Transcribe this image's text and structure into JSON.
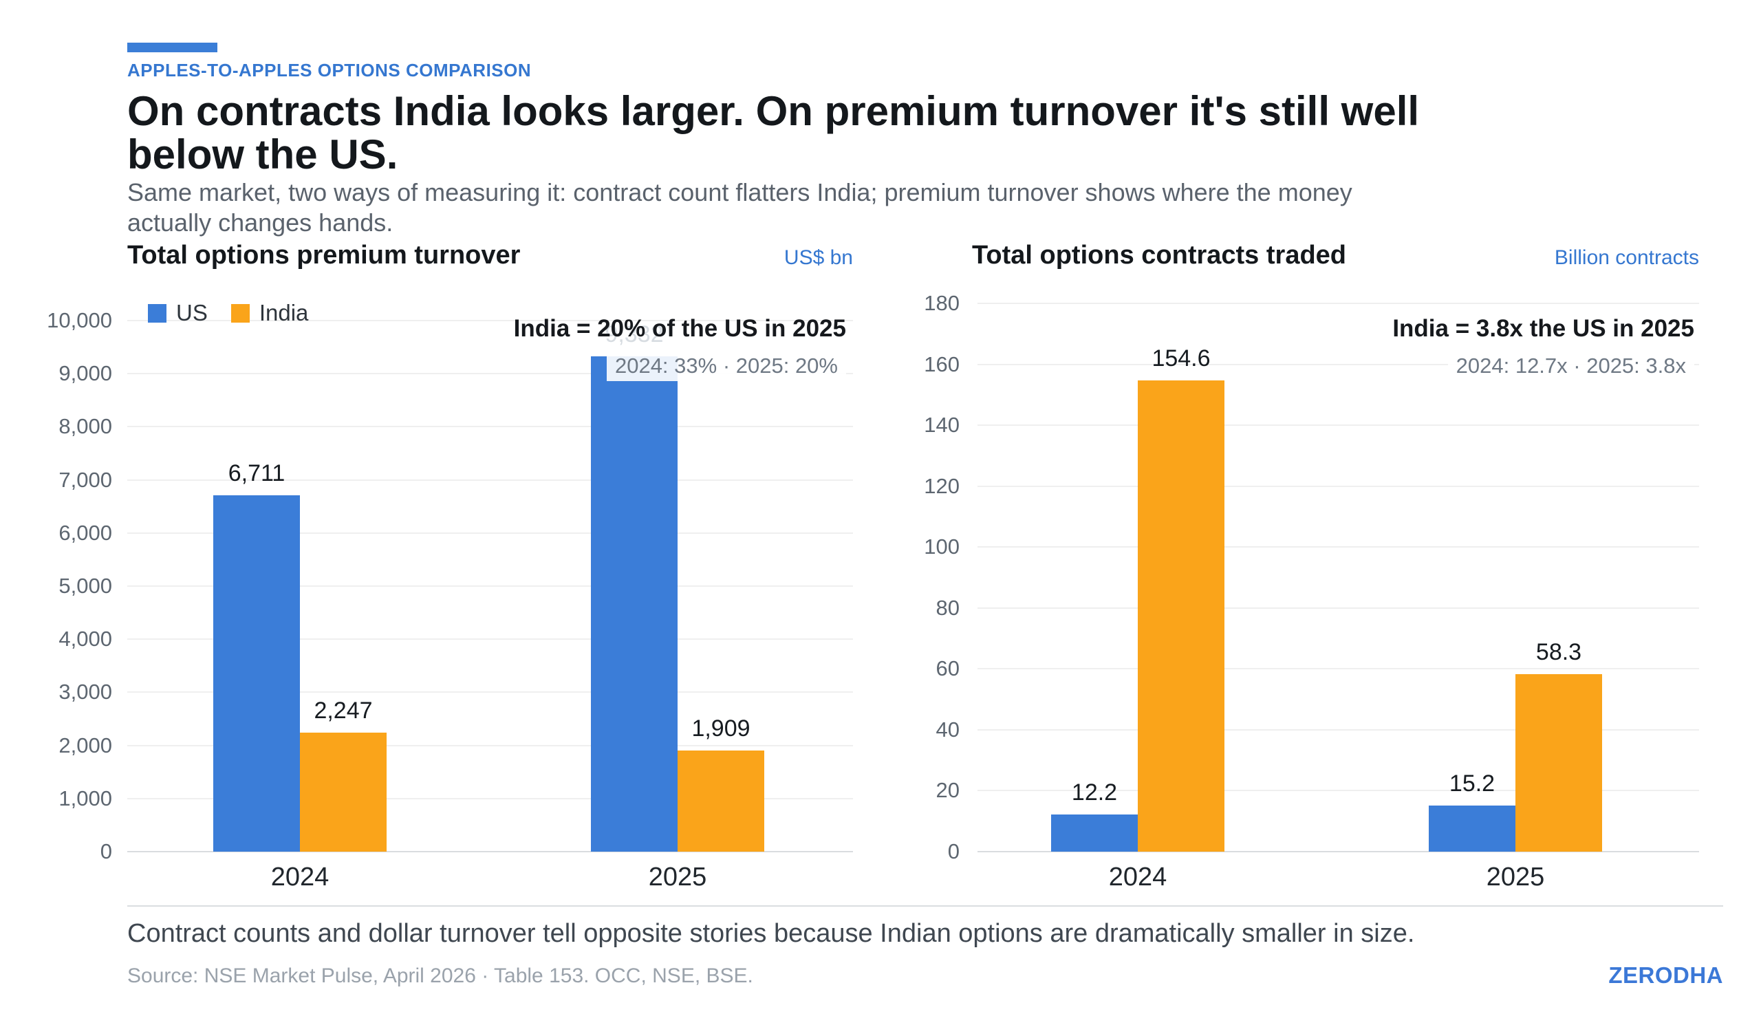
{
  "header": {
    "eyebrow": "APPLES-TO-APPLES OPTIONS COMPARISON",
    "title": "On contracts India looks larger. On premium turnover it's still well\nbelow the US.",
    "subtitle": "Same market, two ways of measuring it: contract count flatters India; premium turnover shows where the money\nactually changes hands."
  },
  "colors": {
    "us": "#3b7dd8",
    "india": "#faa41a",
    "accent_blue": "#3577d0"
  },
  "chart_data": [
    {
      "type": "bar",
      "title": "Total options premium turnover",
      "unit_label": "US$ bn",
      "categories": [
        "2024",
        "2025"
      ],
      "series": [
        {
          "name": "US",
          "values": [
            6711,
            9332
          ],
          "labels": [
            "6,711",
            "9,332"
          ],
          "muted": [
            false,
            true
          ]
        },
        {
          "name": "India",
          "values": [
            2247,
            1909
          ],
          "labels": [
            "2,247",
            "1,909"
          ],
          "muted": [
            false,
            false
          ]
        }
      ],
      "ylim": [
        0,
        10000
      ],
      "ytick_labels": [
        "0",
        "1,000",
        "2,000",
        "3,000",
        "4,000",
        "5,000",
        "6,000",
        "7,000",
        "8,000",
        "9,000",
        "10,000"
      ],
      "grid": true,
      "legend_position": "top-left",
      "show_legend": true,
      "annotation": {
        "main": "India = 20% of the US in 2025",
        "sub": "2024: 33% · 2025: 20%"
      }
    },
    {
      "type": "bar",
      "title": "Total options contracts traded",
      "unit_label": "Billion contracts",
      "categories": [
        "2024",
        "2025"
      ],
      "series": [
        {
          "name": "US",
          "values": [
            12.2,
            15.2
          ],
          "labels": [
            "12.2",
            "15.2"
          ],
          "muted": [
            false,
            false
          ]
        },
        {
          "name": "India",
          "values": [
            154.6,
            58.3
          ],
          "labels": [
            "154.6",
            "58.3"
          ],
          "muted": [
            false,
            false
          ]
        }
      ],
      "ylim": [
        0,
        180
      ],
      "ytick_labels": [
        "0",
        "20",
        "40",
        "60",
        "80",
        "100",
        "120",
        "140",
        "160",
        "180"
      ],
      "grid": true,
      "show_legend": false,
      "annotation": {
        "main": "India = 3.8x the US in 2025",
        "sub": "2024: 12.7x · 2025: 3.8x"
      }
    }
  ],
  "footer": {
    "note": "Contract counts and dollar turnover tell opposite stories because Indian options are dramatically smaller in size.",
    "source": "Source: NSE Market Pulse, April 2026 · Table 153. OCC, NSE, BSE.",
    "brand": "ZERODHA"
  }
}
